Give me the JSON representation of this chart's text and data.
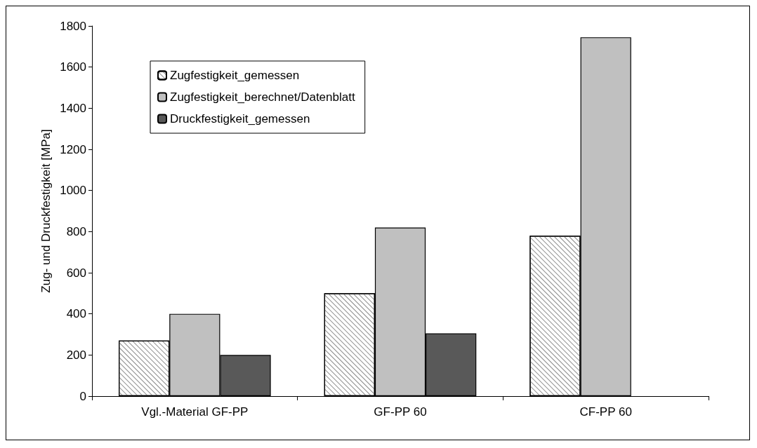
{
  "chart_data": {
    "type": "bar",
    "ylabel": "Zug- und Druckfestigkeit [MPa]",
    "categories": [
      "Vgl.-Material GF-PP",
      "GF-PP 60",
      "CF-PP 60"
    ],
    "series": [
      {
        "name": "Zugfestigkeit_gemessen",
        "color": "#ffffff",
        "values": [
          270,
          500,
          780
        ]
      },
      {
        "name": "Zugfestigkeit_berechnet/Datenblatt",
        "color": "#c0c0c0",
        "values": [
          400,
          820,
          1745
        ]
      },
      {
        "name": "Druckfestigkeit_gemessen",
        "color": "#595959",
        "values": [
          200,
          305,
          null
        ]
      }
    ],
    "ylim": [
      0,
      1800
    ],
    "yticks": [
      0,
      200,
      400,
      600,
      800,
      1000,
      1200,
      1400,
      1600,
      1800
    ],
    "grid": false,
    "legend": "top left"
  }
}
